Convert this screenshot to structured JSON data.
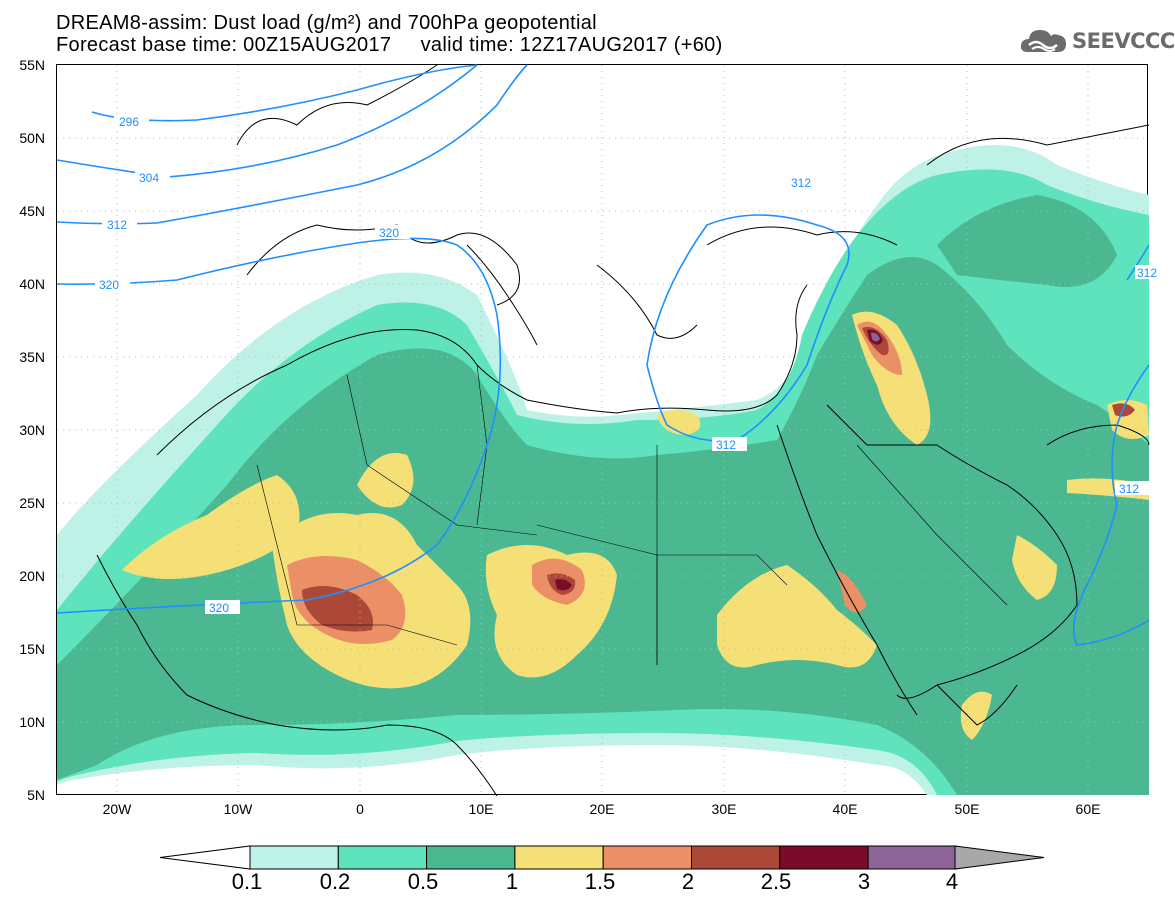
{
  "title": {
    "line1": "DREAM8-assim: Dust load (g/m²) and 700hPa geopotential",
    "line2": "Forecast base time: 00Z15AUG2017     valid time: 12Z17AUG2017 (+60)"
  },
  "logo": {
    "text": "SEEVCCC",
    "icon": "cloud-logo-icon"
  },
  "axes": {
    "y_labels": [
      "55N",
      "50N",
      "45N",
      "40N",
      "35N",
      "30N",
      "25N",
      "20N",
      "15N",
      "10N",
      "5N"
    ],
    "x_labels": [
      "20W",
      "10W",
      "0",
      "10E",
      "20E",
      "30E",
      "40E",
      "50E",
      "60E"
    ],
    "lat_range": [
      5,
      55
    ],
    "lon_range": [
      -25,
      65
    ]
  },
  "colorbar": {
    "labels": [
      "0.1",
      "0.2",
      "0.5",
      "1",
      "1.5",
      "2",
      "2.5",
      "3",
      "4"
    ],
    "colors": [
      "#bff2e7",
      "#5fe3bd",
      "#4cb891",
      "#f5e078",
      "#eb9066",
      "#ab4838",
      "#7c0a2a",
      "#8c6498",
      "#a8a8a8"
    ]
  },
  "contours": {
    "labels": [
      "296",
      "304",
      "312",
      "320",
      "320",
      "312",
      "312",
      "312",
      "320",
      "312"
    ]
  }
}
